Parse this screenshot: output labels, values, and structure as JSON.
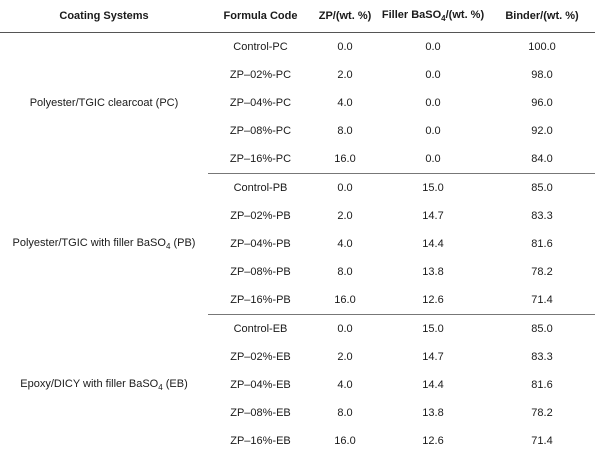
{
  "table": {
    "headers": {
      "system": "Coating Systems",
      "code": "Formula Code",
      "zp": "ZP/(wt. %)",
      "filler_pre": "Filler BaSO",
      "filler_sub": "4",
      "filler_post": "/(wt. %)",
      "binder": "Binder/(wt. %)"
    },
    "groups": [
      {
        "system_pre": "Polyester/TGIC clearcoat (PC)",
        "rows": [
          {
            "code": "Control-PC",
            "zp": "0.0",
            "filler": "0.0",
            "binder": "100.0"
          },
          {
            "code": "ZP–02%-PC",
            "zp": "2.0",
            "filler": "0.0",
            "binder": "98.0"
          },
          {
            "code": "ZP–04%-PC",
            "zp": "4.0",
            "filler": "0.0",
            "binder": "96.0"
          },
          {
            "code": "ZP–08%-PC",
            "zp": "8.0",
            "filler": "0.0",
            "binder": "92.0"
          },
          {
            "code": "ZP–16%-PC",
            "zp": "16.0",
            "filler": "0.0",
            "binder": "84.0"
          }
        ]
      },
      {
        "system_pre": "Polyester/TGIC with filler BaSO",
        "system_sub": "4",
        "system_post": " (PB)",
        "rows": [
          {
            "code": "Control-PB",
            "zp": "0.0",
            "filler": "15.0",
            "binder": "85.0"
          },
          {
            "code": "ZP–02%-PB",
            "zp": "2.0",
            "filler": "14.7",
            "binder": "83.3"
          },
          {
            "code": "ZP–04%-PB",
            "zp": "4.0",
            "filler": "14.4",
            "binder": "81.6"
          },
          {
            "code": "ZP–08%-PB",
            "zp": "8.0",
            "filler": "13.8",
            "binder": "78.2"
          },
          {
            "code": "ZP–16%-PB",
            "zp": "16.0",
            "filler": "12.6",
            "binder": "71.4"
          }
        ]
      },
      {
        "system_pre": "Epoxy/DICY with filler BaSO",
        "system_sub": "4",
        "system_post": " (EB)",
        "rows": [
          {
            "code": "Control-EB",
            "zp": "0.0",
            "filler": "15.0",
            "binder": "85.0"
          },
          {
            "code": "ZP–02%-EB",
            "zp": "2.0",
            "filler": "14.7",
            "binder": "83.3"
          },
          {
            "code": "ZP–04%-EB",
            "zp": "4.0",
            "filler": "14.4",
            "binder": "81.6"
          },
          {
            "code": "ZP–08%-EB",
            "zp": "8.0",
            "filler": "13.8",
            "binder": "78.2"
          },
          {
            "code": "ZP–16%-EB",
            "zp": "16.0",
            "filler": "12.6",
            "binder": "71.4"
          }
        ]
      }
    ]
  }
}
